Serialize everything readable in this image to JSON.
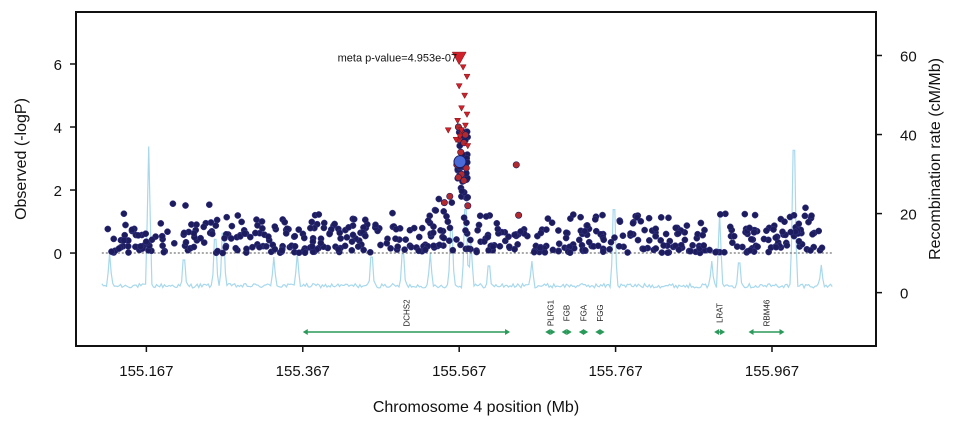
{
  "chart_data": {
    "type": "scatter",
    "title": "",
    "xlabel": "Chromosome 4 position (Mb)",
    "ylabel_left": "Observed (-logP)",
    "ylabel_right": "Recombination rate (cM/Mb)",
    "xlim": [
      155.077,
      156.1
    ],
    "ylim_left": [
      -2.95,
      7.65
    ],
    "ylim_right": [
      -13.5,
      71
    ],
    "x_ticks": [
      155.167,
      155.367,
      155.567,
      155.767,
      155.967
    ],
    "x_tick_labels": [
      "155.167",
      "155.367",
      "155.567",
      "155.767",
      "155.967"
    ],
    "y_ticks_left": [
      0,
      2,
      4,
      6
    ],
    "y_tick_labels_left": [
      "0",
      "2",
      "4",
      "6"
    ],
    "y_ticks_right": [
      0,
      20,
      40,
      60
    ],
    "y_tick_labels_right": [
      "0",
      "20",
      "40",
      "60"
    ],
    "annotation": "meta p-value=4.953e-07",
    "lead_snp": {
      "x": 155.567,
      "y": 6.2
    },
    "reference_snp": {
      "x": 155.568,
      "y": 2.9
    },
    "triangles": [
      {
        "x": 155.567,
        "y": 6.2,
        "size": "large"
      },
      {
        "x": 155.572,
        "y": 5.9
      },
      {
        "x": 155.577,
        "y": 5.6
      },
      {
        "x": 155.567,
        "y": 5.3
      },
      {
        "x": 155.574,
        "y": 5.0
      },
      {
        "x": 155.57,
        "y": 4.6
      },
      {
        "x": 155.577,
        "y": 4.4
      },
      {
        "x": 155.565,
        "y": 4.2
      },
      {
        "x": 155.575,
        "y": 4.05
      },
      {
        "x": 155.57,
        "y": 3.9
      },
      {
        "x": 155.553,
        "y": 3.9
      },
      {
        "x": 155.568,
        "y": 3.7
      },
      {
        "x": 155.563,
        "y": 3.6
      },
      {
        "x": 155.578,
        "y": 3.4
      }
    ],
    "highlight_points": [
      {
        "x": 155.566,
        "y": 4.0
      },
      {
        "x": 155.571,
        "y": 3.8
      },
      {
        "x": 155.575,
        "y": 3.75
      },
      {
        "x": 155.567,
        "y": 3.6
      },
      {
        "x": 155.573,
        "y": 3.5
      },
      {
        "x": 155.569,
        "y": 3.2
      },
      {
        "x": 155.564,
        "y": 2.8
      },
      {
        "x": 155.576,
        "y": 2.7
      },
      {
        "x": 155.57,
        "y": 2.5
      },
      {
        "x": 155.566,
        "y": 2.4
      },
      {
        "x": 155.573,
        "y": 2.3
      },
      {
        "x": 155.555,
        "y": 1.8
      },
      {
        "x": 155.578,
        "y": 1.5
      },
      {
        "x": 155.548,
        "y": 1.6
      },
      {
        "x": 155.64,
        "y": 2.8
      },
      {
        "x": 155.643,
        "y": 1.2
      }
    ],
    "recombination_peaks": [
      {
        "x": 155.12,
        "r": 10
      },
      {
        "x": 155.17,
        "r": 37
      },
      {
        "x": 155.215,
        "r": 11
      },
      {
        "x": 155.255,
        "r": 18
      },
      {
        "x": 155.265,
        "r": 20
      },
      {
        "x": 155.33,
        "r": 9
      },
      {
        "x": 155.36,
        "r": 10
      },
      {
        "x": 155.455,
        "r": 12
      },
      {
        "x": 155.495,
        "r": 13
      },
      {
        "x": 155.53,
        "r": 10
      },
      {
        "x": 155.557,
        "r": 22
      },
      {
        "x": 155.575,
        "r": 28
      },
      {
        "x": 155.582,
        "r": 13
      },
      {
        "x": 155.605,
        "r": 9
      },
      {
        "x": 155.66,
        "r": 8
      },
      {
        "x": 155.765,
        "r": 28
      },
      {
        "x": 155.89,
        "r": 8
      },
      {
        "x": 155.9,
        "r": 20
      },
      {
        "x": 155.925,
        "r": 10
      },
      {
        "x": 155.995,
        "r": 48
      },
      {
        "x": 156.03,
        "r": 7
      }
    ],
    "genes": [
      {
        "name": "DCHS2",
        "start": 155.367,
        "end": 155.632
      },
      {
        "name": "PLRG1",
        "start": 155.677,
        "end": 155.69
      },
      {
        "name": "FGB",
        "start": 155.698,
        "end": 155.711
      },
      {
        "name": "FGA",
        "start": 155.72,
        "end": 155.732
      },
      {
        "name": "FGG",
        "start": 155.741,
        "end": 155.753
      },
      {
        "name": "LRAT",
        "start": 155.893,
        "end": 155.907
      },
      {
        "name": "RBM46",
        "start": 155.937,
        "end": 155.983
      }
    ],
    "grid": false,
    "legend": "none"
  },
  "colors": {
    "points": "#1c1c5e",
    "point_edge": "#3a3a8a",
    "triangles": "#d0202a",
    "highlight": "#b02a30",
    "reference": "#4a6ad8",
    "recombination": "#a8d8ec",
    "genes": "#2a9a5a",
    "baseline": "#555555",
    "axis": "#111111"
  }
}
